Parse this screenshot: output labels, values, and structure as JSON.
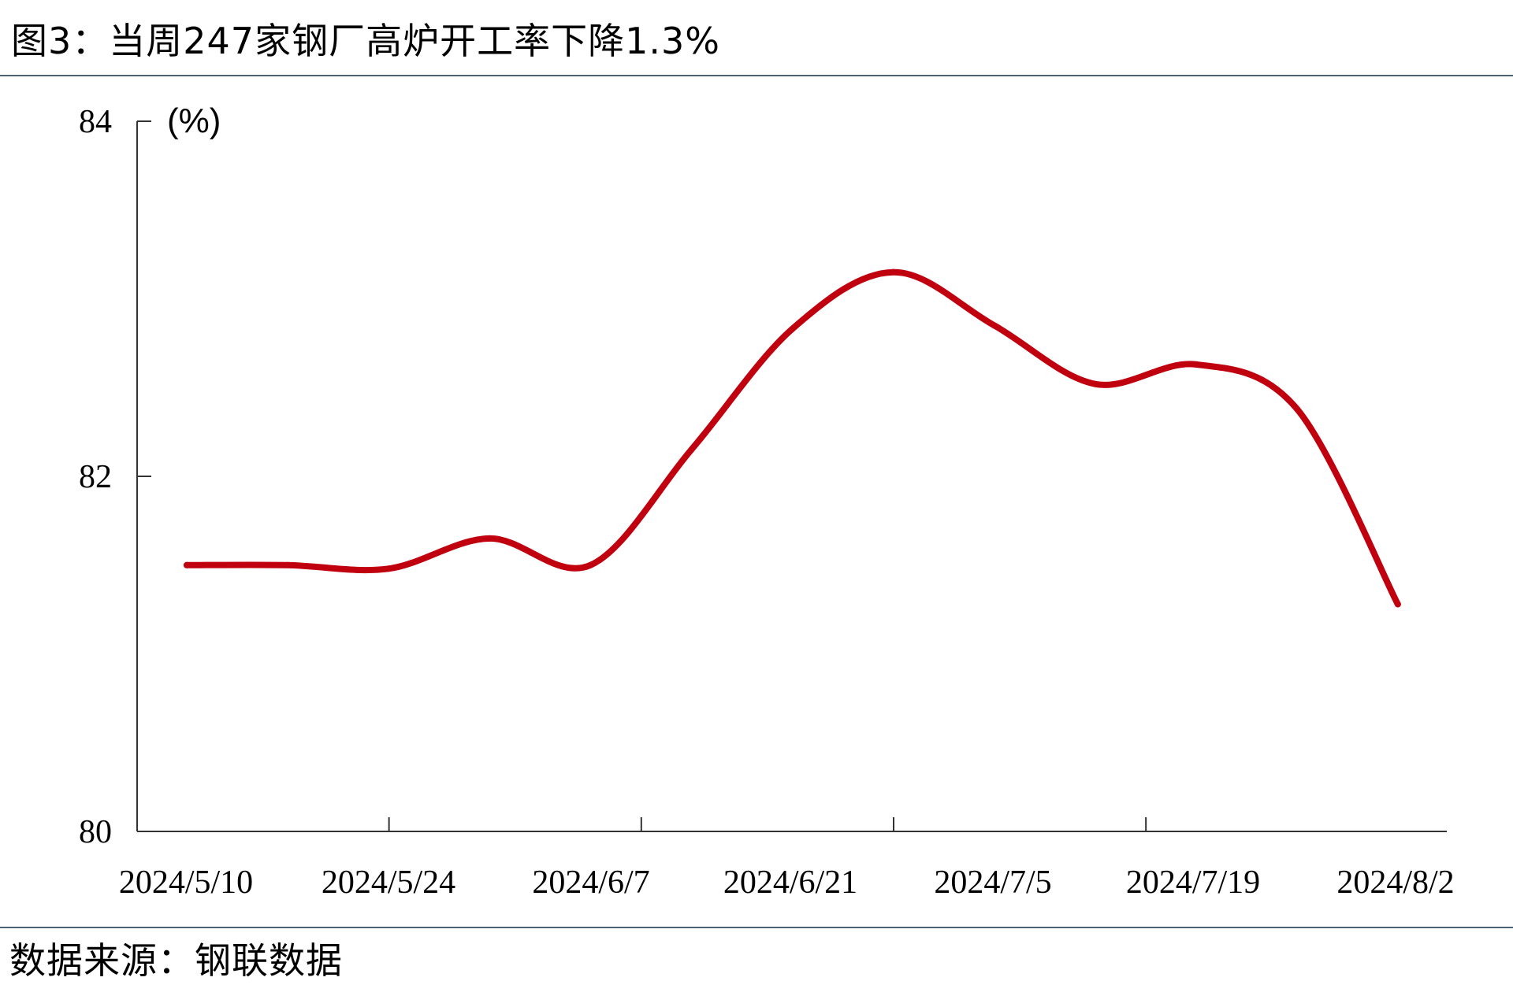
{
  "title": "图3：当周247家钢厂高炉开工率下降1.3%",
  "source": "数据来源：钢联数据",
  "chart_data": {
    "type": "line",
    "unit_label": "(%)",
    "x": [
      "2024/5/10",
      "2024/5/17",
      "2024/5/24",
      "2024/5/31",
      "2024/6/7",
      "2024/6/14",
      "2024/6/21",
      "2024/6/28",
      "2024/7/5",
      "2024/7/12",
      "2024/7/19",
      "2024/7/26",
      "2024/8/2"
    ],
    "x_tick_labels": [
      "2024/5/10",
      "2024/5/24",
      "2024/6/7",
      "2024/6/21",
      "2024/7/5",
      "2024/7/19",
      "2024/8/2"
    ],
    "series": [
      {
        "values": [
          81.5,
          81.5,
          81.48,
          81.65,
          81.5,
          82.15,
          82.83,
          83.15,
          82.85,
          82.52,
          82.63,
          82.38,
          81.28
        ],
        "color": "#c0000e"
      }
    ],
    "ylim": [
      80,
      84
    ],
    "y_ticks": [
      80,
      82,
      84
    ],
    "grid": false,
    "legend": "none"
  }
}
